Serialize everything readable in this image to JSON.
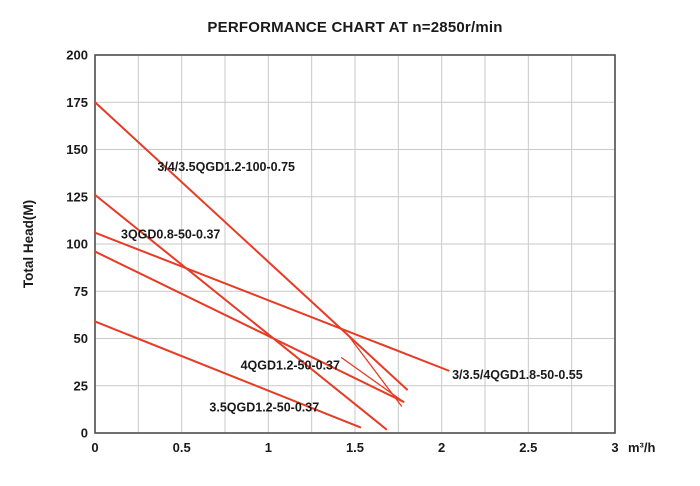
{
  "title": "PERFORMANCE CHART AT n=2850r/min",
  "chart_data": {
    "type": "line",
    "title": "PERFORMANCE CHART AT n=2850r/min",
    "xlabel": "",
    "x_unit": "m³/h",
    "ylabel": "Total Head(M)",
    "xlim": [
      0,
      3
    ],
    "ylim": [
      0,
      200
    ],
    "x_ticks": [
      0,
      0.5,
      1,
      1.5,
      2,
      2.5,
      3
    ],
    "y_ticks": [
      0,
      25,
      50,
      75,
      100,
      125,
      150,
      175,
      200
    ],
    "x_minor_step": 0.25,
    "y_major_step": 25,
    "grid": true,
    "legend_position": "none",
    "series": [
      {
        "name": "3/4/3.5QGD1.2-100-0.75",
        "points": [
          [
            0,
            175
          ],
          [
            1.8,
            23
          ]
        ],
        "label_pos": [
          0.36,
          138.5
        ]
      },
      {
        "name": "3QGD0.8-50-0.37",
        "points": [
          [
            0,
            126
          ],
          [
            1.68,
            2
          ]
        ],
        "label_pos": [
          0.15,
          103
        ]
      },
      {
        "name": "3/3.5/4QGD1.8-50-0.55",
        "points": [
          [
            0,
            106
          ],
          [
            2.04,
            33
          ]
        ],
        "label_pos": [
          2.06,
          28.5
        ]
      },
      {
        "name": "4QGD1.2-50-0.37",
        "points": [
          [
            0,
            96
          ],
          [
            1.78,
            16.5
          ]
        ],
        "label_pos": [
          0.84,
          33.5
        ]
      },
      {
        "name": "3.5QGD1.2-50-0.37",
        "points": [
          [
            0,
            59
          ],
          [
            1.53,
            3
          ]
        ],
        "label_pos": [
          0.66,
          11.5
        ]
      }
    ],
    "leader_lines": [
      [
        [
          1.42,
          40
        ],
        [
          1.78,
          16.5
        ]
      ],
      [
        [
          1.45,
          53
        ],
        [
          1.77,
          14
        ]
      ]
    ],
    "colors": {
      "line": "#e63b25",
      "grid": "#c9c9c9",
      "border": "#4d4d4d",
      "text": "#1a1a1a"
    }
  }
}
